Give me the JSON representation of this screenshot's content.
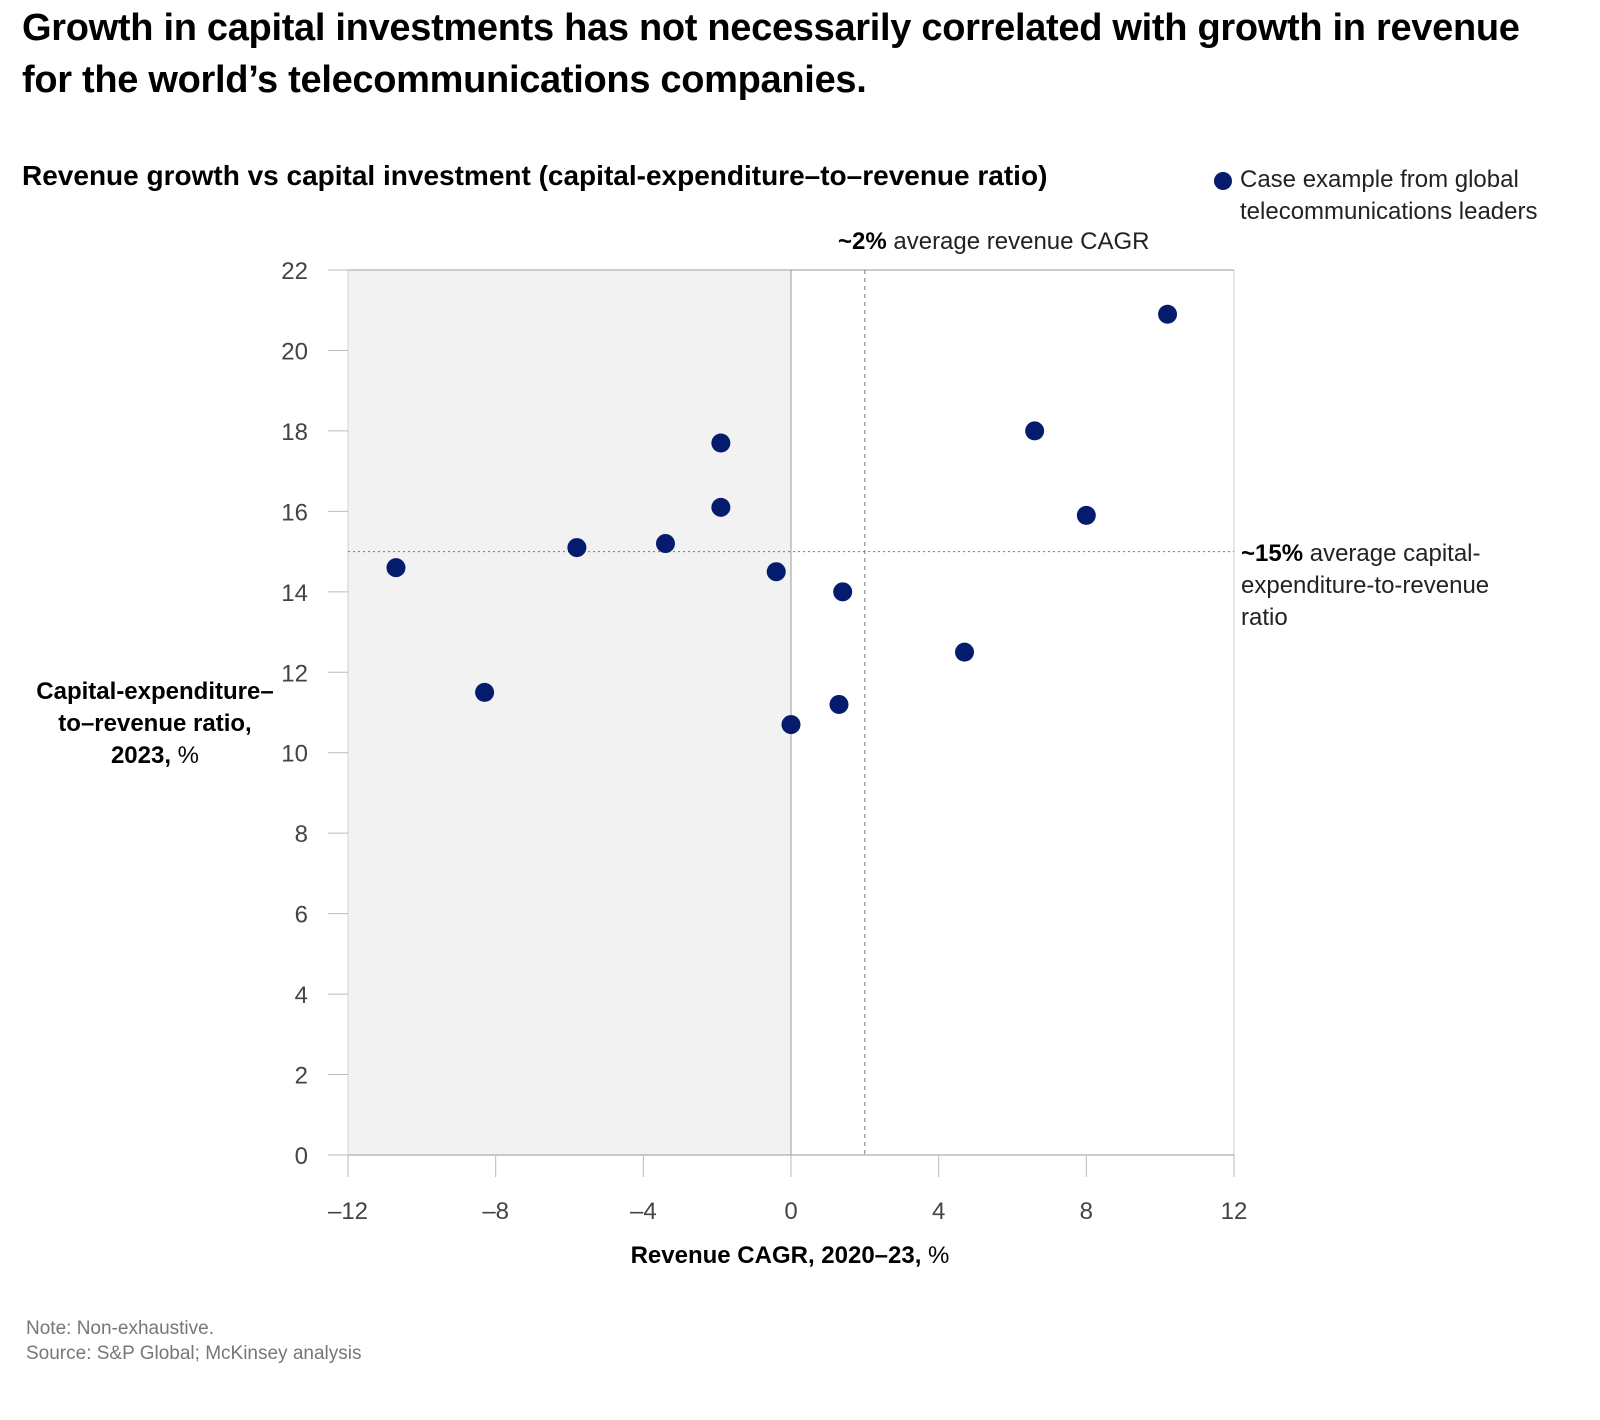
{
  "title": "Growth in capital investments has not necessarily correlated with growth in revenue for the world’s telecommunications companies.",
  "chart_data": {
    "type": "scatter",
    "title": "Revenue growth vs capital investment (capital-expenditure–to–revenue ratio)",
    "xlabel_bold": "Revenue CAGR, 2020–23,",
    "xlabel_unit": " %",
    "ylabel_bold_1": "Capital-expenditure–",
    "ylabel_bold_2": "to–revenue ratio,",
    "ylabel_bold_3": "2023,",
    "ylabel_unit": " %",
    "xlim": [
      -12,
      12
    ],
    "ylim": [
      0,
      22
    ],
    "x_ticks": [
      -12,
      -8,
      -4,
      0,
      4,
      8,
      12
    ],
    "x_tick_labels": [
      "–12",
      "–8",
      "–4",
      "0",
      "4",
      "8",
      "12"
    ],
    "y_ticks": [
      0,
      2,
      4,
      6,
      8,
      10,
      12,
      14,
      16,
      18,
      20,
      22
    ],
    "y_tick_labels": [
      "0",
      "2",
      "4",
      "6",
      "8",
      "10",
      "12",
      "14",
      "16",
      "18",
      "20",
      "22"
    ],
    "shaded_region": "x < 0",
    "legend": {
      "label": "Case example from global telecommunications leaders",
      "position": "top-right"
    },
    "series": [
      {
        "name": "Case example from global telecommunications leaders",
        "color": "#051c6e",
        "points": [
          {
            "x": -10.7,
            "y": 14.6
          },
          {
            "x": -8.3,
            "y": 11.5
          },
          {
            "x": -5.8,
            "y": 15.1
          },
          {
            "x": -3.4,
            "y": 15.2
          },
          {
            "x": -1.9,
            "y": 17.7
          },
          {
            "x": -1.9,
            "y": 16.1
          },
          {
            "x": -0.4,
            "y": 14.5
          },
          {
            "x": 0.0,
            "y": 10.7
          },
          {
            "x": 1.3,
            "y": 11.2
          },
          {
            "x": 1.4,
            "y": 14.0
          },
          {
            "x": 4.7,
            "y": 12.5
          },
          {
            "x": 6.6,
            "y": 18.0
          },
          {
            "x": 8.0,
            "y": 15.9
          },
          {
            "x": 10.2,
            "y": 20.9
          }
        ]
      }
    ],
    "reference_lines": {
      "x": {
        "value": 2,
        "bold": "~2%",
        "text": " average revenue CAGR"
      },
      "y": {
        "value": 15,
        "bold": "~15%",
        "text": " average capital-expenditure-to-revenue ratio"
      }
    }
  },
  "note": "Note: Non-exhaustive.",
  "source": "Source: S&P Global; McKinsey analysis"
}
